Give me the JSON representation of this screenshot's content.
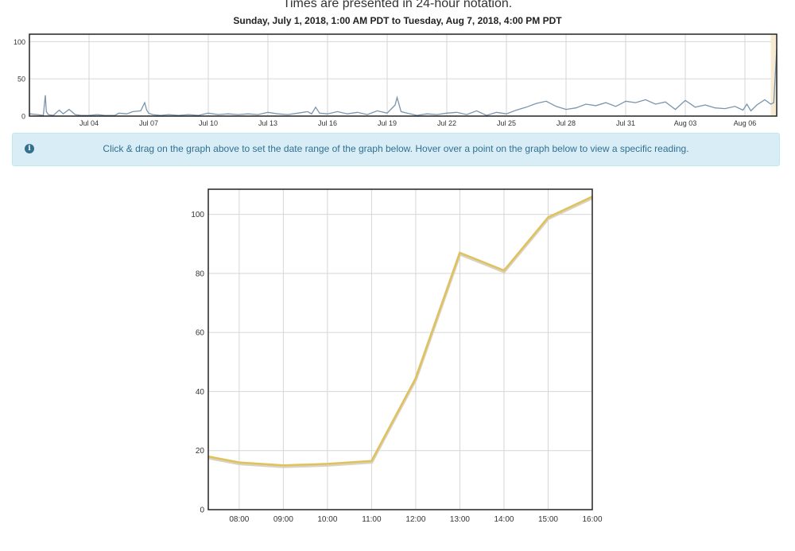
{
  "header": {
    "notation_text": "Times are presented in 24-hour notation.",
    "range_text": "Sunday, July 1, 2018, 1:00 AM PDT to Tuesday, Aug 7, 2018, 4:00 PM PDT"
  },
  "info": {
    "icon": "info-circle-icon",
    "text": "Click & drag on the graph above to set the date range of the graph below. Hover over a point on the graph below to view a specific reading."
  },
  "colors": {
    "overview_line": "#7b95ad",
    "detail_line": "#e0c25c",
    "selection": "#f7ead3",
    "info_bg": "#d9edf7",
    "info_text": "#31708f"
  },
  "chart_data": [
    {
      "type": "line",
      "x_unit": "days since Jul 1, 2018",
      "xticks": [
        "Jul 04",
        "Jul 07",
        "Jul 10",
        "Jul 13",
        "Jul 16",
        "Jul 19",
        "Jul 22",
        "Jul 25",
        "Jul 28",
        "Jul 31",
        "Aug 03",
        "Aug 06"
      ],
      "xtick_positions": [
        3,
        6,
        9,
        12,
        15,
        18,
        21,
        24,
        27,
        30,
        33,
        36
      ],
      "yticks": [
        0,
        50,
        100
      ],
      "ylim": [
        0,
        110
      ],
      "xlim": [
        0,
        37.6
      ],
      "selection_range": [
        37.3,
        37.6
      ],
      "series": [
        {
          "x": [
            0,
            0.4,
            0.7,
            0.8,
            0.85,
            0.95,
            1.2,
            1.5,
            1.7,
            2.0,
            2.3,
            2.6,
            3.0,
            3.4,
            3.8,
            4.3,
            4.5,
            4.9,
            5.2,
            5.6,
            5.8,
            5.9,
            6.0,
            6.2,
            6.6,
            7.0,
            7.5,
            8.0,
            8.5,
            9.0,
            9.5,
            10.0,
            10.5,
            11.0,
            11.5,
            12.0,
            12.5,
            13.0,
            13.5,
            14.0,
            14.2,
            14.4,
            14.6,
            15.0,
            15.5,
            16.0,
            16.5,
            17.0,
            17.5,
            18.0,
            18.4,
            18.5,
            18.7,
            19.0,
            19.5,
            20.0,
            20.5,
            21.0,
            21.5,
            22.0,
            22.5,
            23.0,
            23.5,
            24.0,
            24.5,
            25.0,
            25.5,
            26.0,
            26.5,
            27.0,
            27.5,
            28.0,
            28.5,
            29.0,
            29.5,
            29.8,
            30.0,
            30.5,
            31.0,
            31.5,
            32.0,
            32.5,
            33.0,
            33.5,
            34.0,
            34.5,
            35.0,
            35.5,
            35.9,
            36.1,
            36.3,
            36.6,
            37.0,
            37.3,
            37.45,
            37.6
          ],
          "values": [
            3,
            2,
            1,
            28,
            6,
            2,
            1,
            8,
            3,
            9,
            2,
            1,
            1,
            2,
            1,
            1,
            4,
            3,
            6,
            7,
            18,
            8,
            4,
            2,
            1,
            2,
            1,
            2,
            1,
            4,
            2,
            3,
            2,
            3,
            2,
            5,
            3,
            2,
            4,
            6,
            3,
            12,
            4,
            3,
            6,
            3,
            5,
            2,
            7,
            4,
            15,
            25,
            6,
            4,
            1,
            3,
            2,
            4,
            5,
            2,
            7,
            1,
            5,
            3,
            8,
            12,
            17,
            20,
            13,
            9,
            11,
            16,
            14,
            18,
            13,
            17,
            20,
            18,
            22,
            16,
            19,
            9,
            21,
            12,
            15,
            11,
            10,
            13,
            8,
            16,
            7,
            15,
            22,
            16,
            18,
            90
          ]
        }
      ]
    },
    {
      "type": "line",
      "xticks": [
        "08:00",
        "09:00",
        "10:00",
        "11:00",
        "12:00",
        "13:00",
        "14:00",
        "15:00",
        "16:00"
      ],
      "xtick_values": [
        8,
        9,
        10,
        11,
        12,
        13,
        14,
        15,
        16
      ],
      "yticks": [
        0,
        20,
        40,
        60,
        80,
        100
      ],
      "ylim": [
        0,
        108.5
      ],
      "xlim": [
        7.3,
        16
      ],
      "grid": true,
      "series": [
        {
          "x": [
            7.3,
            8,
            9,
            10,
            11,
            12,
            13,
            14,
            15,
            16
          ],
          "values": [
            18,
            16,
            15,
            15.5,
            16.5,
            44.5,
            87,
            81,
            99,
            106
          ]
        }
      ]
    }
  ]
}
